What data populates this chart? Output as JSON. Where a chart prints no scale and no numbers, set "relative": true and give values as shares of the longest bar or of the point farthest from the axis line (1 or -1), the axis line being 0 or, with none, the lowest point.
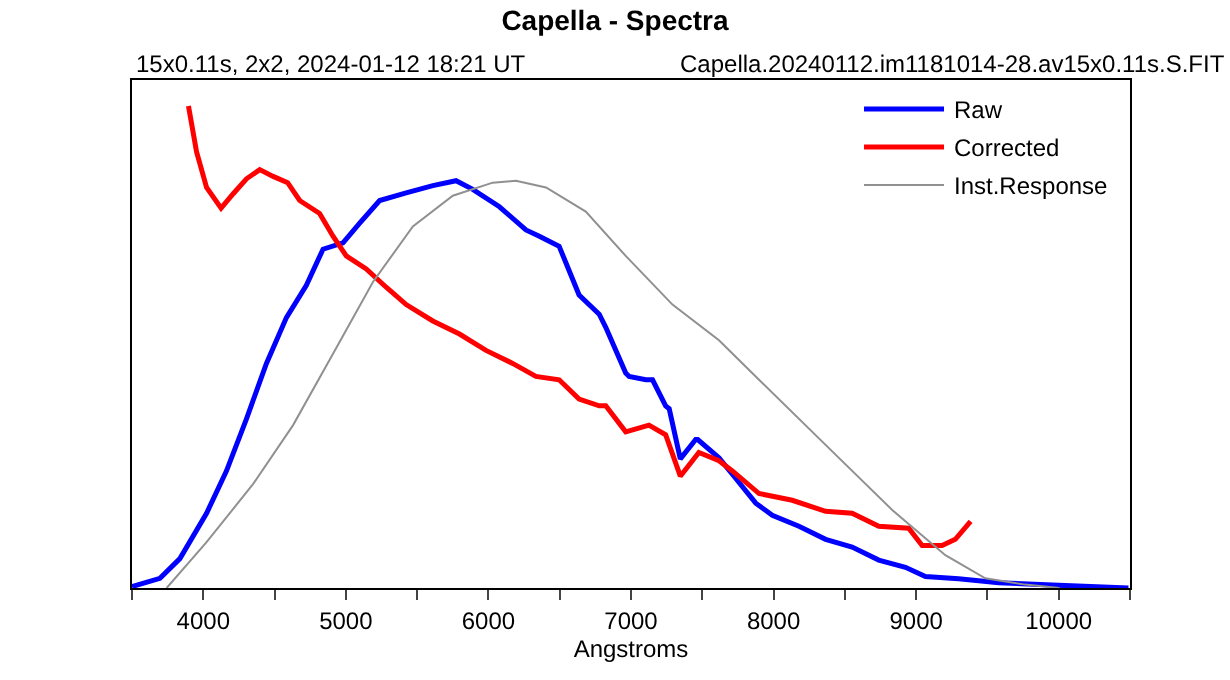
{
  "chart_data": {
    "type": "line",
    "relative": true,
    "title": "Capella - Spectra",
    "subtitle": "15x0.11s, 2x2, 2024-01-12 18:21 UT",
    "annotations": [
      "Capella.20240112.im1181014-28.av15x0.11s.S.FIT"
    ],
    "xlabel": "Angstroms",
    "xlim": [
      3500,
      10500
    ],
    "xticks": [
      {
        "value": 3500,
        "label": null
      },
      4000,
      {
        "value": 4500,
        "label": null
      },
      5000,
      {
        "value": 5500,
        "label": null
      },
      6000,
      {
        "value": 6500,
        "label": null
      },
      7000,
      {
        "value": 7500,
        "label": null
      },
      8000,
      {
        "value": 8500,
        "label": null
      },
      9000,
      {
        "value": 9500,
        "label": null
      },
      10000,
      {
        "value": 10500,
        "label": null
      }
    ],
    "legend": "top right",
    "marker": "none",
    "line_style": "solid",
    "series": [
      {
        "name": "Raw",
        "color": "#0000ff",
        "x": [
          3500,
          3696,
          3836,
          4023,
          4163,
          4303,
          4443,
          4583,
          4723,
          4840,
          4980,
          5097,
          5237,
          5423,
          5610,
          5773,
          5890,
          6077,
          6263,
          6357,
          6496,
          6636,
          6777,
          6823,
          6963,
          6987,
          7104,
          7151,
          7243,
          7268,
          7346,
          7454,
          7468,
          7617,
          7711,
          7875,
          7991,
          8178,
          8365,
          8551,
          8738,
          8925,
          9065,
          9298,
          9579,
          10045,
          10489
        ],
        "values": [
          0.003,
          0.02,
          0.061,
          0.155,
          0.243,
          0.351,
          0.466,
          0.561,
          0.628,
          0.703,
          0.716,
          0.757,
          0.804,
          0.82,
          0.835,
          0.845,
          0.827,
          0.791,
          0.743,
          0.73,
          0.709,
          0.608,
          0.568,
          0.541,
          0.446,
          0.439,
          0.432,
          0.432,
          0.378,
          0.372,
          0.268,
          0.308,
          0.308,
          0.27,
          0.236,
          0.176,
          0.151,
          0.128,
          0.101,
          0.085,
          0.058,
          0.043,
          0.024,
          0.019,
          0.011,
          0.005,
          0
        ]
      },
      {
        "name": "Corrected",
        "color": "#ff0000",
        "x": [
          3896,
          3953,
          4023,
          4125,
          4210,
          4303,
          4396,
          4490,
          4592,
          4676,
          4816,
          4910,
          5003,
          5143,
          5283,
          5423,
          5610,
          5797,
          5983,
          6170,
          6333,
          6496,
          6636,
          6777,
          6823,
          6963,
          7126,
          7243,
          7346,
          7476,
          7617,
          7711,
          7898,
          8131,
          8365,
          8551,
          8738,
          8948,
          9042,
          9182,
          9275,
          9382
        ],
        "values": [
          1.0,
          0.905,
          0.831,
          0.788,
          0.818,
          0.849,
          0.868,
          0.854,
          0.841,
          0.804,
          0.777,
          0.73,
          0.689,
          0.662,
          0.624,
          0.588,
          0.554,
          0.527,
          0.493,
          0.466,
          0.439,
          0.432,
          0.392,
          0.378,
          0.378,
          0.324,
          0.338,
          0.318,
          0.232,
          0.281,
          0.264,
          0.243,
          0.196,
          0.182,
          0.159,
          0.155,
          0.128,
          0.124,
          0.088,
          0.088,
          0.101,
          0.138
        ]
      },
      {
        "name": "Inst.Response",
        "color": "#909090",
        "x": [
          3743,
          4023,
          4350,
          4630,
          4910,
          5190,
          5470,
          5750,
          6030,
          6193,
          6404,
          6683,
          6963,
          7291,
          7617,
          7898,
          8458,
          8832,
          9205,
          9485,
          9765,
          10005
        ],
        "values": [
          0,
          0.095,
          0.216,
          0.338,
          0.486,
          0.635,
          0.75,
          0.814,
          0.841,
          0.845,
          0.831,
          0.781,
          0.689,
          0.588,
          0.514,
          0.432,
          0.27,
          0.162,
          0.068,
          0.02,
          0.007,
          0
        ]
      }
    ]
  }
}
